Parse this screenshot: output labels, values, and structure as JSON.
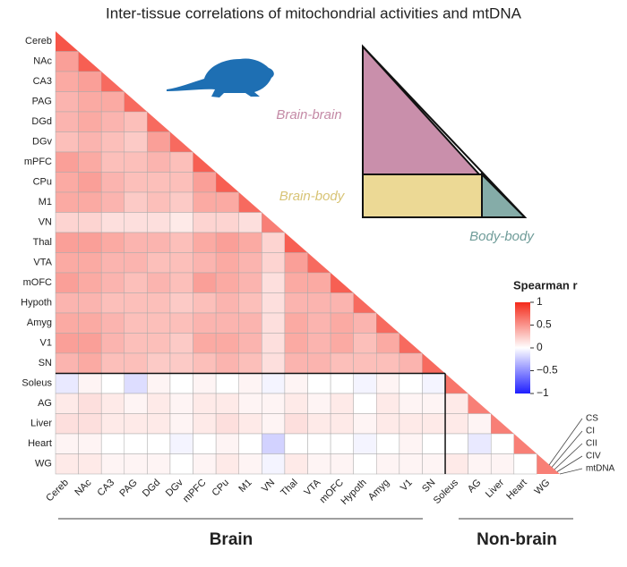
{
  "chart_data": {
    "type": "heatmap",
    "title": "Inter-tissue correlations of mitochondrial activities and mtDNA",
    "categories": [
      "Cereb",
      "NAc",
      "CA3",
      "PAG",
      "DGd",
      "DGv",
      "mPFC",
      "CPu",
      "M1",
      "VN",
      "Thal",
      "VTA",
      "mOFC",
      "Hypoth",
      "Amyg",
      "V1",
      "SN",
      "Soleus",
      "AG",
      "Liver",
      "Heart",
      "WG"
    ],
    "values": [
      [
        0.8
      ],
      [
        0.45,
        0.75
      ],
      [
        0.4,
        0.45,
        0.7
      ],
      [
        0.35,
        0.4,
        0.4,
        0.7
      ],
      [
        0.35,
        0.4,
        0.35,
        0.3,
        0.7
      ],
      [
        0.3,
        0.35,
        0.3,
        0.25,
        0.45,
        0.7
      ],
      [
        0.45,
        0.4,
        0.3,
        0.3,
        0.35,
        0.3,
        0.75
      ],
      [
        0.4,
        0.45,
        0.35,
        0.3,
        0.3,
        0.3,
        0.45,
        0.75
      ],
      [
        0.4,
        0.4,
        0.35,
        0.25,
        0.3,
        0.25,
        0.4,
        0.4,
        0.7
      ],
      [
        0.2,
        0.2,
        0.15,
        0.15,
        0.15,
        0.1,
        0.2,
        0.2,
        0.15,
        0.6
      ],
      [
        0.45,
        0.45,
        0.4,
        0.35,
        0.35,
        0.3,
        0.4,
        0.45,
        0.4,
        0.2,
        0.75
      ],
      [
        0.4,
        0.4,
        0.35,
        0.35,
        0.3,
        0.3,
        0.35,
        0.4,
        0.35,
        0.2,
        0.45,
        0.7
      ],
      [
        0.45,
        0.4,
        0.35,
        0.3,
        0.35,
        0.3,
        0.45,
        0.4,
        0.35,
        0.15,
        0.4,
        0.4,
        0.75
      ],
      [
        0.35,
        0.35,
        0.3,
        0.3,
        0.3,
        0.25,
        0.3,
        0.35,
        0.3,
        0.15,
        0.35,
        0.35,
        0.35,
        0.7
      ],
      [
        0.4,
        0.4,
        0.35,
        0.3,
        0.3,
        0.3,
        0.35,
        0.35,
        0.35,
        0.15,
        0.4,
        0.35,
        0.4,
        0.35,
        0.7
      ],
      [
        0.45,
        0.45,
        0.35,
        0.3,
        0.3,
        0.25,
        0.4,
        0.4,
        0.35,
        0.15,
        0.4,
        0.35,
        0.4,
        0.3,
        0.4,
        0.7
      ],
      [
        0.35,
        0.4,
        0.3,
        0.3,
        0.25,
        0.25,
        0.3,
        0.35,
        0.3,
        0.15,
        0.35,
        0.35,
        0.3,
        0.3,
        0.3,
        0.35,
        0.7
      ],
      [
        -0.1,
        0.05,
        0.0,
        -0.15,
        0.05,
        0.0,
        0.05,
        0.0,
        0.05,
        -0.05,
        0.05,
        0.0,
        0.0,
        -0.05,
        0.05,
        0.0,
        -0.05,
        0.65
      ],
      [
        0.1,
        0.15,
        0.1,
        0.05,
        0.1,
        0.05,
        0.1,
        0.1,
        0.05,
        0.05,
        0.1,
        0.05,
        0.1,
        0.0,
        0.1,
        0.05,
        0.05,
        0.1,
        0.6
      ],
      [
        0.15,
        0.15,
        0.1,
        0.1,
        0.1,
        0.05,
        0.1,
        0.15,
        0.1,
        0.05,
        0.15,
        0.1,
        0.1,
        0.05,
        0.1,
        0.1,
        0.1,
        0.1,
        0.05,
        0.6
      ],
      [
        0.05,
        0.05,
        0.0,
        0.0,
        0.0,
        -0.05,
        0.0,
        0.05,
        0.0,
        -0.2,
        0.0,
        0.0,
        0.0,
        -0.05,
        0.0,
        0.05,
        0.0,
        0.0,
        -0.1,
        0.0,
        0.6
      ],
      [
        0.1,
        0.1,
        0.05,
        0.05,
        0.05,
        0.0,
        0.05,
        0.1,
        0.05,
        -0.05,
        0.1,
        0.05,
        0.05,
        0.0,
        0.05,
        0.05,
        0.05,
        0.1,
        0.05,
        0.05,
        0.0,
        0.6
      ]
    ],
    "colorscale": [
      "#1f1fff",
      "#ffffff",
      "#f42a1a"
    ],
    "colorbar_title": "Spearman r",
    "colorbar_lim": [
      -1,
      1
    ],
    "colorbar_ticks": [
      1,
      0.5,
      0,
      {
        "value": -0.5,
        "label": "−0.5"
      },
      {
        "value": -1,
        "label": "−1"
      }
    ],
    "features": [
      "CS",
      "CI",
      "CII",
      "CIV",
      "mtDNA"
    ],
    "groups": [
      "Brain",
      "Non-brain"
    ],
    "inset_labels": [
      "Brain-brain",
      "Brain-body",
      "Body-body"
    ]
  }
}
